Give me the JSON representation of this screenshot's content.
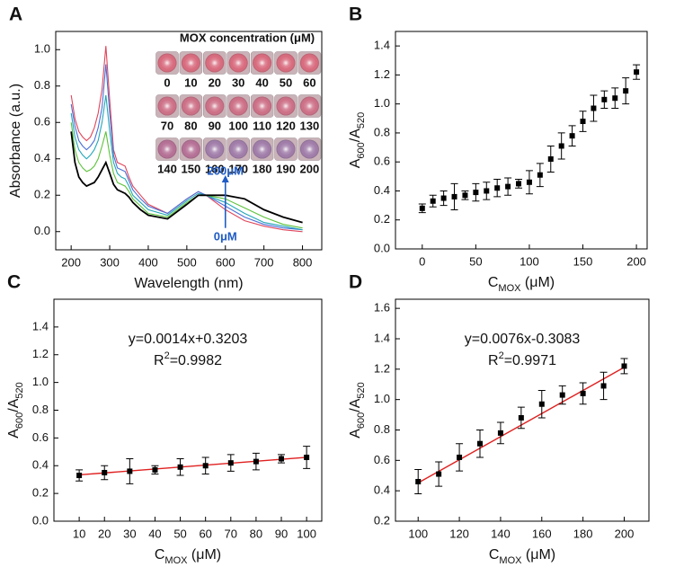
{
  "chart_data": [
    {
      "type": "line",
      "panel_label": "A",
      "x_label": "Wavelength (nm)",
      "y_label": "Absorbance (a.u.)",
      "x": [
        200,
        210,
        220,
        230,
        240,
        250,
        260,
        270,
        280,
        290,
        300,
        310,
        320,
        330,
        340,
        350,
        360,
        380,
        400,
        450,
        500,
        530,
        550,
        600,
        650,
        700,
        750,
        800
      ],
      "series": [
        {
          "color": "#e0455a",
          "values": [
            0.75,
            0.62,
            0.55,
            0.52,
            0.5,
            0.52,
            0.57,
            0.65,
            0.78,
            1.02,
            0.72,
            0.45,
            0.38,
            0.37,
            0.36,
            0.3,
            0.25,
            0.2,
            0.15,
            0.1,
            0.18,
            0.22,
            0.2,
            0.12,
            0.06,
            0.03,
            0.01,
            0.0
          ]
        },
        {
          "color": "#4a6fd8",
          "values": [
            0.7,
            0.58,
            0.5,
            0.47,
            0.45,
            0.47,
            0.5,
            0.57,
            0.68,
            0.92,
            0.65,
            0.42,
            0.35,
            0.34,
            0.33,
            0.28,
            0.23,
            0.18,
            0.14,
            0.1,
            0.18,
            0.22,
            0.2,
            0.14,
            0.08,
            0.04,
            0.02,
            0.01
          ]
        },
        {
          "color": "#22a7b8",
          "values": [
            0.65,
            0.52,
            0.45,
            0.42,
            0.4,
            0.42,
            0.45,
            0.5,
            0.6,
            0.75,
            0.55,
            0.38,
            0.32,
            0.3,
            0.29,
            0.25,
            0.2,
            0.16,
            0.12,
            0.09,
            0.17,
            0.21,
            0.2,
            0.16,
            0.1,
            0.05,
            0.03,
            0.01
          ]
        },
        {
          "color": "#5cc23a",
          "values": [
            0.6,
            0.45,
            0.38,
            0.35,
            0.33,
            0.34,
            0.36,
            0.4,
            0.47,
            0.55,
            0.42,
            0.32,
            0.27,
            0.26,
            0.25,
            0.22,
            0.18,
            0.14,
            0.1,
            0.08,
            0.16,
            0.2,
            0.2,
            0.18,
            0.13,
            0.08,
            0.04,
            0.02
          ]
        },
        {
          "color": "#000000",
          "values": [
            0.55,
            0.38,
            0.3,
            0.27,
            0.25,
            0.26,
            0.27,
            0.3,
            0.34,
            0.38,
            0.32,
            0.26,
            0.23,
            0.22,
            0.21,
            0.19,
            0.16,
            0.12,
            0.09,
            0.07,
            0.15,
            0.2,
            0.2,
            0.2,
            0.18,
            0.12,
            0.08,
            0.05
          ]
        }
      ],
      "xlim": [
        160,
        850
      ],
      "ylim": [
        -0.1,
        1.1
      ],
      "xticks": [
        200,
        300,
        400,
        500,
        600,
        700,
        800
      ],
      "yticks": [
        {
          "value": 0,
          "label": "0.0"
        },
        0.2,
        0.4,
        0.6,
        0.8,
        {
          "value": 1,
          "label": "1.0"
        }
      ],
      "inset_title": "MOX concentration (μM)",
      "well_labels": [
        "0",
        "10",
        "20",
        "30",
        "40",
        "50",
        "60",
        "70",
        "80",
        "90",
        "100",
        "110",
        "120",
        "130",
        "140",
        "150",
        "160",
        "170",
        "180",
        "190",
        "200"
      ],
      "annotations": [
        "200μM",
        "0μM"
      ]
    },
    {
      "type": "scatter",
      "panel_label": "B",
      "x_label": [
        "C",
        "MOX",
        " (μM)"
      ],
      "y_label": [
        "A",
        "600",
        "/A",
        "520"
      ],
      "x": [
        0,
        10,
        20,
        30,
        40,
        50,
        60,
        70,
        80,
        90,
        100,
        110,
        120,
        130,
        140,
        150,
        160,
        170,
        180,
        190,
        200
      ],
      "values": [
        0.28,
        0.33,
        0.35,
        0.36,
        0.37,
        0.39,
        0.4,
        0.42,
        0.43,
        0.45,
        0.46,
        0.51,
        0.62,
        0.71,
        0.78,
        0.88,
        0.97,
        1.03,
        1.04,
        1.09,
        1.22
      ],
      "errors": [
        0.03,
        0.04,
        0.05,
        0.09,
        0.03,
        0.06,
        0.06,
        0.06,
        0.06,
        0.03,
        0.08,
        0.08,
        0.09,
        0.09,
        0.07,
        0.07,
        0.09,
        0.06,
        0.07,
        0.09,
        0.05
      ],
      "color": "#000000",
      "xlim": [
        -25,
        210
      ],
      "ylim": [
        0,
        1.5
      ],
      "xticks": [
        0,
        50,
        100,
        150,
        200
      ],
      "yticks": [
        {
          "value": 0,
          "label": "0.0"
        },
        0.2,
        0.4,
        0.6,
        0.8,
        {
          "value": 1,
          "label": "1.0"
        },
        1.2,
        1.4
      ]
    },
    {
      "type": "scatter",
      "panel_label": "C",
      "x_label": [
        "C",
        "MOX",
        " (μM)"
      ],
      "y_label": [
        "A",
        "600",
        "/A",
        "520"
      ],
      "x": [
        10,
        20,
        30,
        40,
        50,
        60,
        70,
        80,
        90,
        100
      ],
      "values": [
        0.33,
        0.35,
        0.36,
        0.37,
        0.39,
        0.4,
        0.42,
        0.43,
        0.45,
        0.46
      ],
      "errors": [
        0.04,
        0.05,
        0.09,
        0.03,
        0.06,
        0.06,
        0.06,
        0.06,
        0.03,
        0.08
      ],
      "color": "#000000",
      "fit": {
        "color": "#e02020",
        "x": [
          10,
          100
        ],
        "values": [
          0.334,
          0.46
        ]
      },
      "equation": "y=0.0014x+0.3203",
      "r_squared": [
        "R",
        "2",
        "=0.9982"
      ],
      "xlim": [
        0,
        106
      ],
      "ylim": [
        0,
        1.6
      ],
      "xticks": [
        10,
        20,
        30,
        40,
        50,
        60,
        70,
        80,
        90,
        100
      ],
      "yticks": [
        {
          "value": 0,
          "label": "0.0"
        },
        0.2,
        0.4,
        0.6,
        0.8,
        {
          "value": 1,
          "label": "1.0"
        },
        1.2,
        1.4
      ]
    },
    {
      "type": "scatter",
      "panel_label": "D",
      "x_label": [
        "C",
        "MOX",
        " (μM)"
      ],
      "y_label": [
        "A",
        "600",
        "/A",
        "520"
      ],
      "x": [
        100,
        110,
        120,
        130,
        140,
        150,
        160,
        170,
        180,
        190,
        200
      ],
      "values": [
        0.46,
        0.51,
        0.62,
        0.71,
        0.78,
        0.88,
        0.97,
        1.03,
        1.04,
        1.09,
        1.22
      ],
      "errors": [
        0.08,
        0.08,
        0.09,
        0.09,
        0.07,
        0.07,
        0.09,
        0.06,
        0.07,
        0.09,
        0.05
      ],
      "color": "#000000",
      "fit": {
        "color": "#e02020",
        "x": [
          100,
          200
        ],
        "values": [
          0.452,
          1.212
        ]
      },
      "equation": "y=0.0076x-0.3083",
      "r_squared": [
        "R",
        "2",
        "=0.9971"
      ],
      "xlim": [
        89,
        212
      ],
      "ylim": [
        0.2,
        1.66
      ],
      "xticks": [
        100,
        120,
        140,
        160,
        180,
        200
      ],
      "yticks": [
        0.2,
        0.4,
        0.6,
        0.8,
        {
          "value": 1,
          "label": "1.0"
        },
        1.2,
        1.4,
        1.6
      ]
    }
  ]
}
